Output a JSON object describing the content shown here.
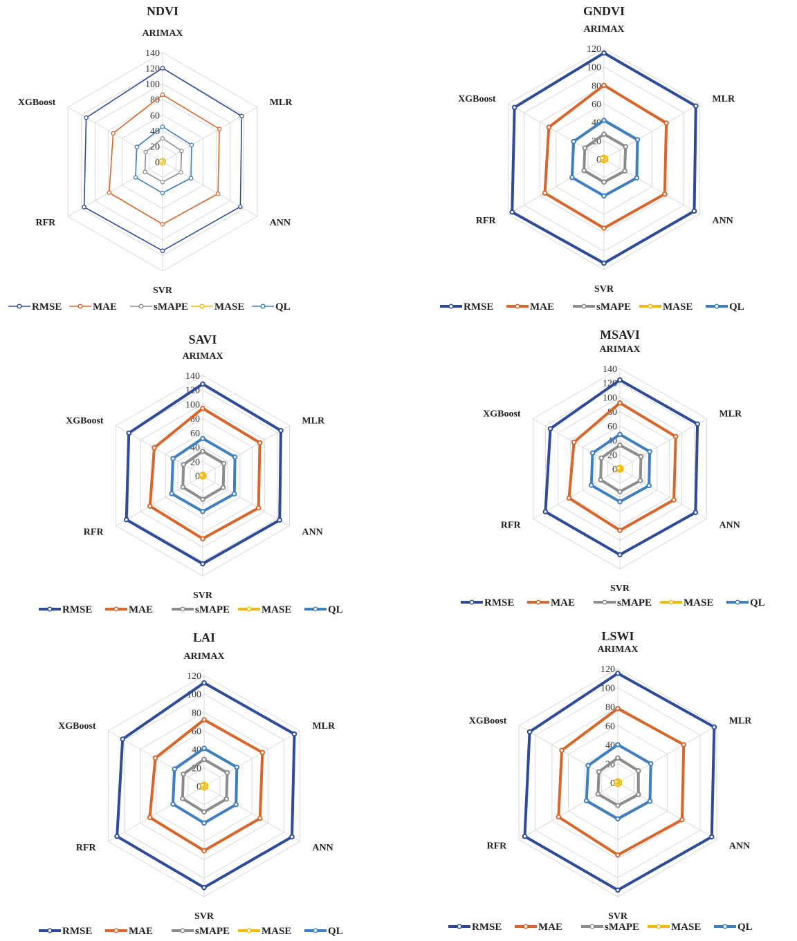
{
  "chart_data": [
    {
      "type": "radar",
      "title": "NDVI",
      "axes": [
        "ARIMAX",
        "MLR",
        "ANN",
        "SVR",
        "RFR",
        "XGBoost"
      ],
      "rlim": [
        0,
        140
      ],
      "ticks": [
        0,
        20,
        40,
        60,
        80,
        100,
        120,
        140
      ],
      "series": [
        {
          "name": "RMSE",
          "values": [
            120,
            117,
            115,
            114,
            116,
            113
          ]
        },
        {
          "name": "MAE",
          "values": [
            86,
            84,
            82,
            80,
            79,
            73
          ]
        },
        {
          "name": "sMAPE",
          "values": [
            30,
            28,
            27,
            26,
            26,
            25
          ]
        },
        {
          "name": "MASE",
          "values": [
            2,
            2,
            2,
            2,
            2,
            2
          ]
        },
        {
          "name": "QL",
          "values": [
            45,
            43,
            42,
            40,
            40,
            38
          ]
        }
      ]
    },
    {
      "type": "radar",
      "title": "GNDVI",
      "axes": [
        "ARIMAX",
        "MLR",
        "ANN",
        "SVR",
        "RFR",
        "XGBoost"
      ],
      "rlim": [
        0,
        120
      ],
      "ticks": [
        0,
        20,
        40,
        60,
        80,
        100,
        120
      ],
      "series": [
        {
          "name": "RMSE",
          "values": [
            115,
            115,
            113,
            113,
            115,
            112
          ]
        },
        {
          "name": "MAE",
          "values": [
            80,
            78,
            76,
            75,
            74,
            69
          ]
        },
        {
          "name": "sMAPE",
          "values": [
            27,
            27,
            26,
            25,
            25,
            24
          ]
        },
        {
          "name": "MASE",
          "values": [
            2,
            2,
            2,
            2,
            2,
            2
          ]
        },
        {
          "name": "QL",
          "values": [
            42,
            42,
            41,
            40,
            40,
            38
          ]
        }
      ]
    },
    {
      "type": "radar",
      "title": "SAVI",
      "axes": [
        "ARIMAX",
        "MLR",
        "ANN",
        "SVR",
        "RFR",
        "XGBoost"
      ],
      "rlim": [
        0,
        140
      ],
      "ticks": [
        0,
        20,
        40,
        60,
        80,
        100,
        120,
        140
      ],
      "series": [
        {
          "name": "RMSE",
          "values": [
            128,
            126,
            124,
            123,
            123,
            119
          ]
        },
        {
          "name": "MAE",
          "values": [
            94,
            92,
            90,
            88,
            85,
            78
          ]
        },
        {
          "name": "sMAPE",
          "values": [
            34,
            34,
            33,
            33,
            32,
            31
          ]
        },
        {
          "name": "MASE",
          "values": [
            2,
            2,
            2,
            2,
            2,
            2
          ]
        },
        {
          "name": "QL",
          "values": [
            52,
            52,
            51,
            50,
            50,
            48
          ]
        }
      ]
    },
    {
      "type": "radar",
      "title": "MSAVI",
      "axes": [
        "ARIMAX",
        "MLR",
        "ANN",
        "SVR",
        "RFR",
        "XGBoost"
      ],
      "rlim": [
        0,
        140
      ],
      "ticks": [
        0,
        20,
        40,
        60,
        80,
        100,
        120,
        140
      ],
      "series": [
        {
          "name": "RMSE",
          "values": [
            124,
            125,
            122,
            120,
            120,
            112
          ]
        },
        {
          "name": "MAE",
          "values": [
            92,
            90,
            87,
            86,
            82,
            74
          ]
        },
        {
          "name": "sMAPE",
          "values": [
            33,
            34,
            33,
            32,
            31,
            30
          ]
        },
        {
          "name": "MASE",
          "values": [
            2,
            2,
            2,
            2,
            2,
            2
          ]
        },
        {
          "name": "QL",
          "values": [
            48,
            48,
            47,
            46,
            46,
            44
          ]
        }
      ]
    },
    {
      "type": "radar",
      "title": "LAI",
      "axes": [
        "ARIMAX",
        "MLR",
        "ANN",
        "SVR",
        "RFR",
        "XGBoost"
      ],
      "rlim": [
        0,
        120
      ],
      "ticks": [
        0,
        20,
        40,
        60,
        80,
        100,
        120
      ],
      "series": [
        {
          "name": "RMSE",
          "values": [
            112,
            113,
            110,
            110,
            109,
            102
          ]
        },
        {
          "name": "MAE",
          "values": [
            72,
            73,
            70,
            70,
            68,
            61
          ]
        },
        {
          "name": "sMAPE",
          "values": [
            29,
            29,
            28,
            28,
            27,
            26
          ]
        },
        {
          "name": "MASE",
          "values": [
            2,
            2,
            2,
            2,
            2,
            2
          ]
        },
        {
          "name": "QL",
          "values": [
            41,
            41,
            40,
            40,
            39,
            37
          ]
        }
      ]
    },
    {
      "type": "radar",
      "title": "LSWI",
      "axes": [
        "ARIMAX",
        "MLR",
        "ANN",
        "SVR",
        "RFR",
        "XGBoost"
      ],
      "rlim": [
        0,
        120
      ],
      "ticks": [
        0,
        20,
        40,
        60,
        80,
        100,
        120
      ],
      "series": [
        {
          "name": "RMSE",
          "values": [
            115,
            117,
            114,
            113,
            113,
            107
          ]
        },
        {
          "name": "MAE",
          "values": [
            78,
            80,
            78,
            76,
            72,
            68
          ]
        },
        {
          "name": "sMAPE",
          "values": [
            26,
            25,
            25,
            24,
            24,
            23
          ]
        },
        {
          "name": "MASE",
          "values": [
            2,
            2,
            2,
            2,
            2,
            2
          ]
        },
        {
          "name": "QL",
          "values": [
            40,
            40,
            39,
            38,
            38,
            36
          ]
        }
      ]
    }
  ],
  "series_colors": {
    "RMSE": "#2e4b9a",
    "MAE": "#d8662a",
    "sMAPE": "#8c8c8c",
    "MASE": "#f2b90f",
    "QL": "#3f7fc0"
  }
}
